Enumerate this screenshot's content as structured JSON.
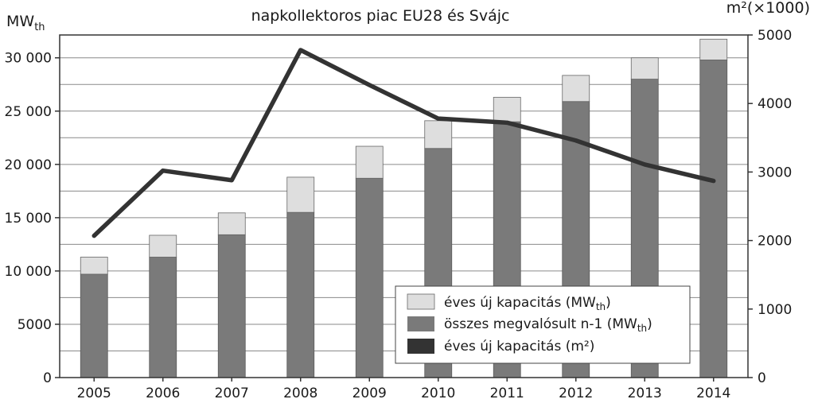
{
  "chart_data": {
    "type": "bar",
    "title": "napkollektoros piac EU28 és Svájc",
    "y_left_label": "MWth",
    "y_left_label_main": "MW",
    "y_left_label_sub": "th",
    "y_right_label": "m²(×1000)",
    "categories": [
      "2005",
      "2006",
      "2007",
      "2008",
      "2009",
      "2010",
      "2011",
      "2012",
      "2013",
      "2014"
    ],
    "series": [
      {
        "name": "összes megvalósult n-1 (MWth)",
        "type": "bar",
        "axis": "left",
        "color": "#7a7a7a",
        "values": [
          9700,
          11300,
          13400,
          15500,
          18700,
          21500,
          24000,
          25900,
          28000,
          29800
        ]
      },
      {
        "name": "éves új kapacitás (MWth)",
        "type": "bar-stacked",
        "axis": "left",
        "color": "#dedede",
        "values": [
          1600,
          2050,
          2050,
          3300,
          3000,
          2600,
          2300,
          2450,
          2000,
          1950
        ]
      },
      {
        "name": "éves új kapacitás (m²)",
        "type": "line",
        "axis": "right",
        "color": "#333333",
        "values": [
          2070,
          3020,
          2880,
          4780,
          4270,
          3780,
          3720,
          3460,
          3110,
          2870
        ]
      }
    ],
    "y_left_ticks": [
      "0",
      "5000",
      "10 000",
      "15 000",
      "20 000",
      "25 000",
      "30 000"
    ],
    "y_left_tick_values": [
      0,
      5000,
      10000,
      15000,
      20000,
      25000,
      30000
    ],
    "y_right_ticks": [
      "0",
      "1000",
      "2000",
      "3000",
      "4000",
      "5000"
    ],
    "y_right_tick_values": [
      0,
      1000,
      2000,
      3000,
      4000,
      5000
    ],
    "ylim_left": [
      0,
      32143
    ],
    "ylim_right": [
      0,
      5000
    ],
    "legend": {
      "position": "bottom-right",
      "entries": [
        {
          "main": "éves új kapacitás (MW",
          "sub": "th",
          "tail": ")",
          "color": "#dedede"
        },
        {
          "main": "összes megvalósult n-1 (MW",
          "sub": "th",
          "tail": ")",
          "color": "#7a7a7a"
        },
        {
          "main": "éves új kapacitás (m²)",
          "sub": "",
          "tail": "",
          "color": "#333333"
        }
      ]
    },
    "grid": true
  }
}
